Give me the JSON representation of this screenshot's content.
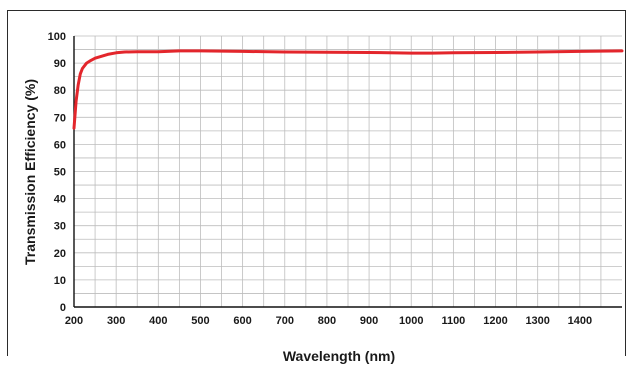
{
  "chart_data": {
    "type": "line",
    "title": "",
    "xlabel": "Wavelength (nm)",
    "ylabel": "Transmission Efficiency (%)",
    "xlim": [
      200,
      1500
    ],
    "ylim": [
      0,
      100
    ],
    "x_ticks": [
      200,
      300,
      400,
      500,
      600,
      700,
      800,
      900,
      1000,
      1100,
      1200,
      1300,
      1400
    ],
    "y_ticks": [
      0,
      10,
      20,
      30,
      40,
      50,
      60,
      70,
      80,
      90,
      100
    ],
    "x_minor_step": 50,
    "y_minor_step": 5,
    "grid": true,
    "series": [
      {
        "name": "",
        "color": "#e3262c",
        "x": [
          200,
          205,
          210,
          215,
          220,
          230,
          240,
          250,
          260,
          280,
          300,
          320,
          350,
          400,
          450,
          500,
          600,
          700,
          800,
          900,
          1000,
          1050,
          1100,
          1200,
          1300,
          1400,
          1500
        ],
        "y": [
          66,
          76,
          82,
          86,
          88,
          90,
          91,
          91.8,
          92.3,
          93.2,
          93.8,
          94.1,
          94.2,
          94.2,
          94.5,
          94.5,
          94.3,
          94.1,
          94.0,
          93.9,
          93.7,
          93.7,
          93.8,
          93.9,
          94.1,
          94.3,
          94.5
        ]
      }
    ]
  }
}
